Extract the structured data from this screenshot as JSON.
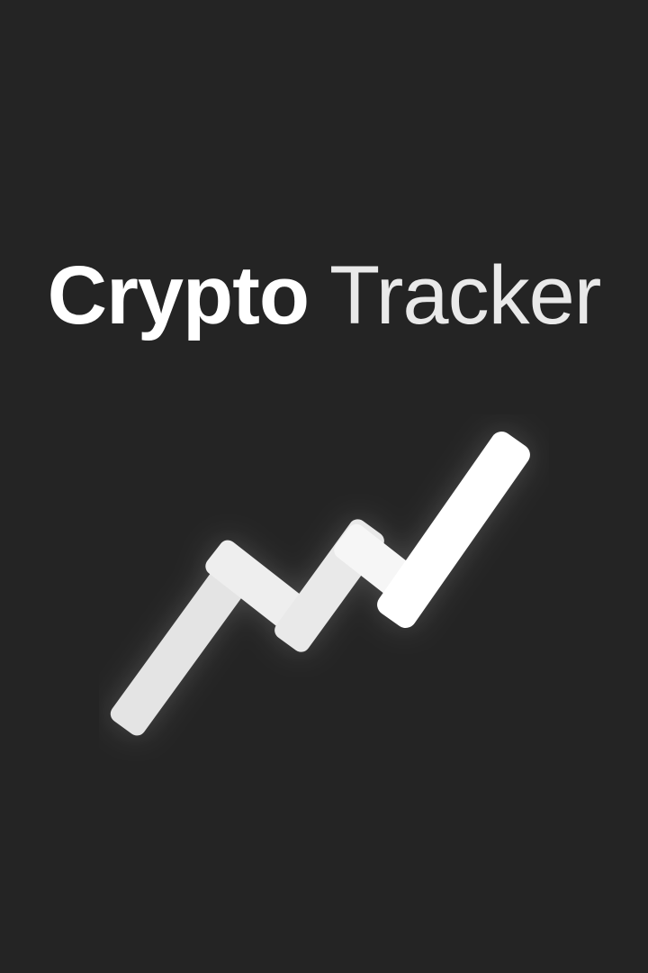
{
  "app": {
    "title_bold": "Crypto",
    "title_light": "Tracker"
  },
  "icons": {
    "logo": "trending-up-chart-icon"
  },
  "colors": {
    "background": "#242424",
    "text": "#ffffff",
    "logo_primary": "#ffffff",
    "logo_secondary": "#e6e6e6"
  }
}
